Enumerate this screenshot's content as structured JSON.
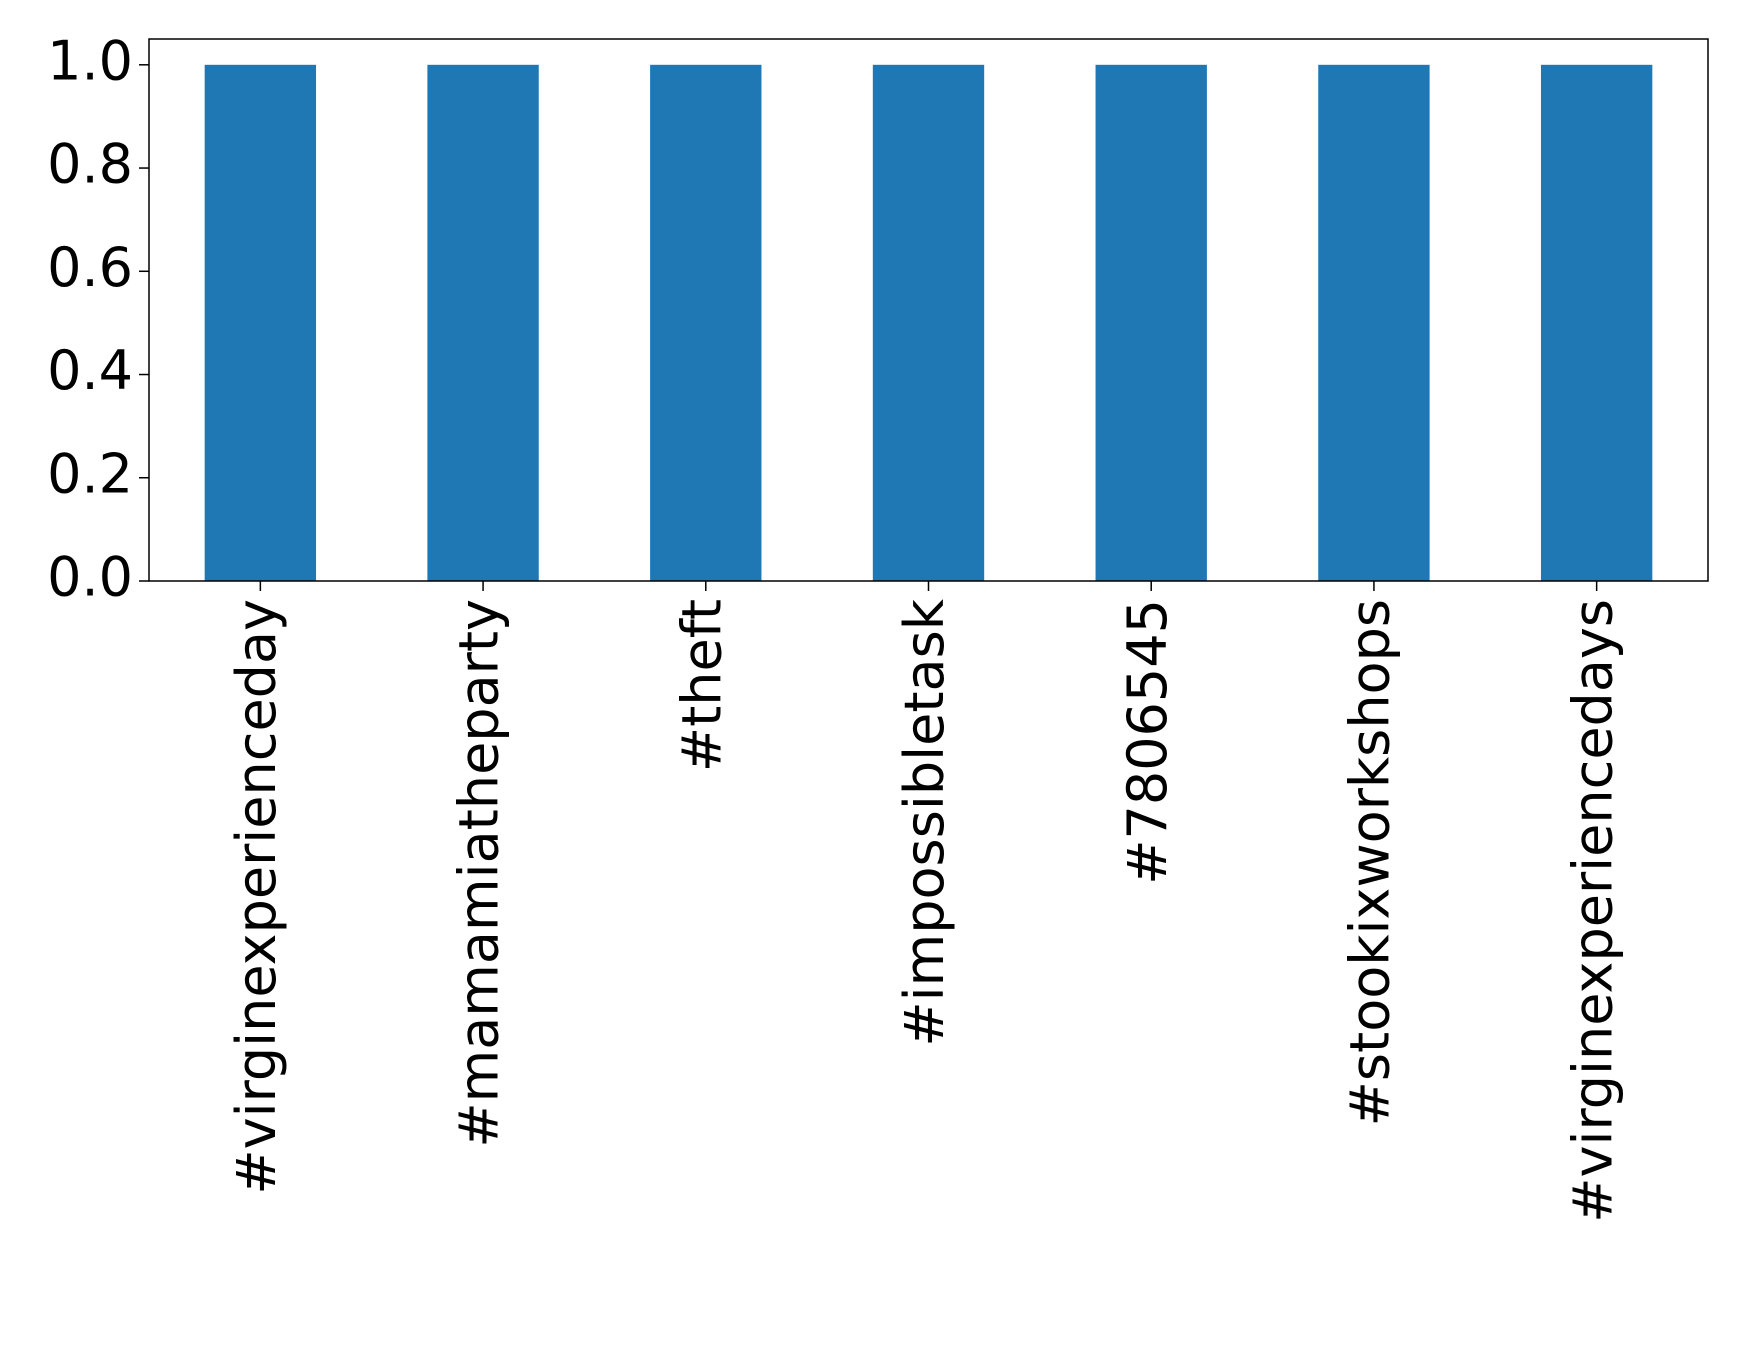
{
  "chart_data": {
    "type": "bar",
    "categories": [
      "#virginexperienceday",
      "#mamamiatheparty",
      "#theft",
      "#impossibletask",
      "#7806545",
      "#stookixworkshops",
      "#virginexperiencedays"
    ],
    "values": [
      1,
      1,
      1,
      1,
      1,
      1,
      1
    ],
    "color": "#1f77b4",
    "ylim": [
      0,
      1.05
    ],
    "yticks": [
      {
        "value": 0,
        "label": "0.0"
      },
      {
        "value": 0.2,
        "label": "0.2"
      },
      {
        "value": 0.4,
        "label": "0.4"
      },
      {
        "value": 0.6,
        "label": "0.6"
      },
      {
        "value": 0.8,
        "label": "0.8"
      },
      {
        "value": 1,
        "label": "1.0"
      }
    ],
    "grid": false
  }
}
